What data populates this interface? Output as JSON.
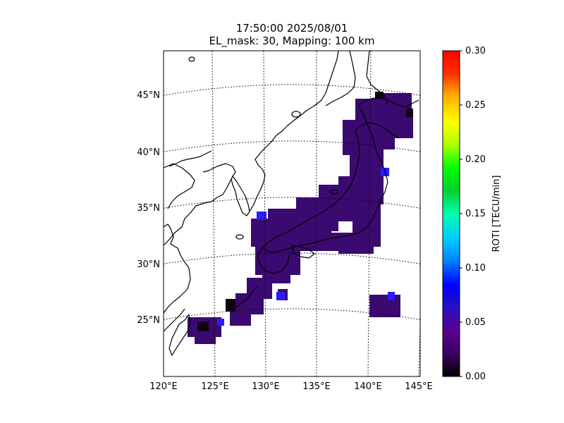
{
  "title": {
    "line1": "17:50:00 2025/08/01",
    "line2": "EL_mask: 30, Mapping: 100 km"
  },
  "map": {
    "lon_ticks": [
      "120°E",
      "125°E",
      "130°E",
      "135°E",
      "140°E",
      "145°E"
    ],
    "lat_ticks": [
      "25°N",
      "30°N",
      "35°N",
      "40°N",
      "45°N"
    ],
    "lon_range": [
      120,
      145
    ],
    "lat_range": [
      20,
      49
    ],
    "graticule": "dotted"
  },
  "colorbar": {
    "label": "ROTI [TECU/min]",
    "ticks": [
      "0.00",
      "0.05",
      "0.10",
      "0.15",
      "0.20",
      "0.25",
      "0.30"
    ],
    "range": [
      0,
      0.3
    ],
    "colormap": "nipy_spectral"
  },
  "colors": {
    "dominant_cell": "#3a0a70",
    "low_cell": "#140014",
    "blue_cell": "#2a1cff",
    "coastline": "#000000"
  }
}
